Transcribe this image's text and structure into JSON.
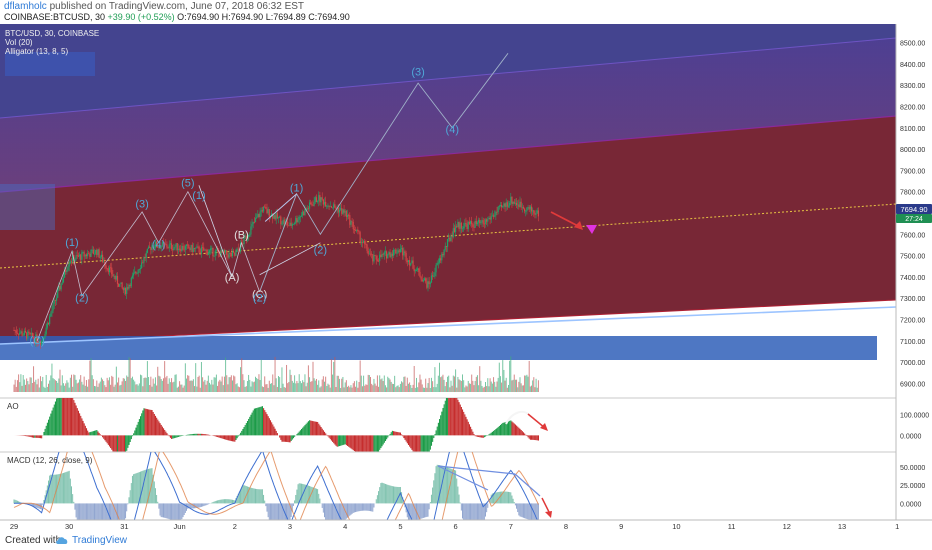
{
  "header": {
    "username": "dflamholc",
    "published": "published on TradingView.com, June 07, 2018 06:32 EST",
    "symbol": "COINBASE:BTCUSD, 30",
    "change": "+39.90 (+0.52%)",
    "ohlc_label": "O:7694.90 H:7694.90 L:7694.89 C:7694.90"
  },
  "legend": {
    "title": "BTC/USD, 30, COINBASE",
    "vol": "Vol (20)",
    "alligator": "Alligator (13, 8, 5)",
    "ao": "AO",
    "macd": "MACD (12, 26, close, 9)"
  },
  "price_badge": {
    "value": "7694.90",
    "timer": "27:24"
  },
  "footer": {
    "created": "Created with",
    "brand": "TradingView"
  },
  "colors": {
    "price_tag": "#2a3a8a",
    "timer_tag": "#1f8f53",
    "candle_up": "#1fa36a",
    "candle_down": "#d44747",
    "channel_upper": "#5a3a9a",
    "channel_lower": "#9a1f2f",
    "trend_line": "#5b89c9",
    "yellow_line": "#d9b22a",
    "red_arrow": "#e03a3a",
    "magenta": "#e033e0",
    "wave_label": "#4fa8d8"
  },
  "chart_data": [
    {
      "type": "candlestick",
      "title": "BTC/USD, 30, COINBASE",
      "ylabel": "",
      "ylim": [
        6850,
        8550
      ],
      "y_ticks": [
        "8500.00",
        "8400.00",
        "8300.00",
        "8200.00",
        "8100.00",
        "8000.00",
        "7900.00",
        "7800.00",
        "7700.00",
        "7600.00",
        "7500.00",
        "7400.00",
        "7300.00",
        "7200.00",
        "7100.00",
        "7000.00",
        "6900.00"
      ],
      "x_ticks": [
        "29",
        "30",
        "31",
        "Jun",
        "2",
        "3",
        "4",
        "5",
        "6",
        "7",
        "8",
        "9",
        "10",
        "11",
        "12",
        "13",
        "1"
      ],
      "approx_close_path": [
        {
          "x": "29",
          "y": 7150
        },
        {
          "x": "29.5",
          "y": 7100
        },
        {
          "x": "30",
          "y": 7480
        },
        {
          "x": "30.5",
          "y": 7520
        },
        {
          "x": "31",
          "y": 7330
        },
        {
          "x": "31.5",
          "y": 7550
        },
        {
          "x": "Jun",
          "y": 7540
        },
        {
          "x": "2",
          "y": 7500
        },
        {
          "x": "2.5",
          "y": 7720
        },
        {
          "x": "3",
          "y": 7640
        },
        {
          "x": "3.5",
          "y": 7770
        },
        {
          "x": "4",
          "y": 7700
        },
        {
          "x": "4.5",
          "y": 7480
        },
        {
          "x": "5",
          "y": 7530
        },
        {
          "x": "5.5",
          "y": 7360
        },
        {
          "x": "6",
          "y": 7640
        },
        {
          "x": "6.5",
          "y": 7650
        },
        {
          "x": "7",
          "y": 7760
        },
        {
          "x": "7.5",
          "y": 7694.9
        }
      ],
      "last_price": 7694.9,
      "wave_labels": [
        {
          "text": "(C)",
          "y": 7085
        },
        {
          "text": "(1)",
          "y": 7545
        },
        {
          "text": "(2)",
          "y": 7285
        },
        {
          "text": "(3)",
          "y": 7725
        },
        {
          "text": "(4)",
          "y": 7535
        },
        {
          "text": "(5)",
          "y": 7825
        },
        {
          "text": "(1)",
          "y": 7765
        },
        {
          "text": "(A)",
          "y": 7380
        },
        {
          "text": "(B)",
          "y": 7580
        },
        {
          "text": "(C)",
          "y": 7300
        },
        {
          "text": "(2)",
          "y": 7285
        },
        {
          "text": "(1)",
          "y": 7800
        },
        {
          "text": "(2)",
          "y": 7510
        },
        {
          "text": "(3)",
          "y": 8345
        },
        {
          "text": "(4)",
          "y": 8075
        }
      ]
    },
    {
      "type": "histogram",
      "title": "AO",
      "y_ticks": [
        "100.0000",
        "0.0000"
      ],
      "ylim": [
        -70,
        150
      ]
    },
    {
      "type": "line",
      "title": "MACD (12, 26, close, 9)",
      "y_ticks": [
        "50.0000",
        "25.0000",
        "0.0000"
      ],
      "ylim": [
        -20,
        65
      ]
    }
  ]
}
